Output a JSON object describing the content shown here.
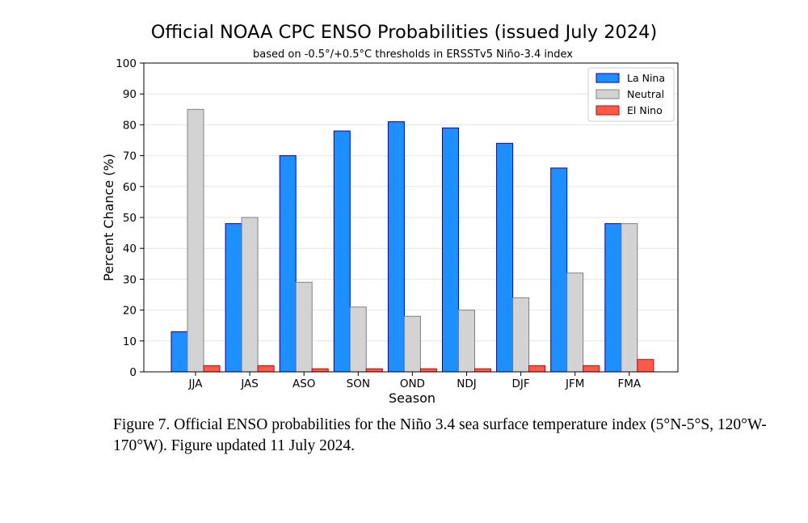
{
  "chart_data": {
    "type": "bar",
    "title": "Official NOAA CPC ENSO Probabilities (issued July 2024)",
    "subtitle": "based on -0.5°/+0.5°C thresholds in ERSSTv5 Niño-3.4 index",
    "xlabel": "Season",
    "ylabel": "Percent Chance (%)",
    "ylim": [
      0,
      100
    ],
    "yticks": [
      0,
      10,
      20,
      30,
      40,
      50,
      60,
      70,
      80,
      90,
      100
    ],
    "grid": true,
    "legend_position": "top-right",
    "categories": [
      "JJA",
      "JAS",
      "ASO",
      "SON",
      "OND",
      "NDJ",
      "DJF",
      "JFM",
      "FMA"
    ],
    "series": [
      {
        "name": "La Nina",
        "color": "#1e8fff",
        "edge": "#0000cc",
        "values": [
          13,
          48,
          70,
          78,
          81,
          79,
          74,
          66,
          48
        ]
      },
      {
        "name": "Neutral",
        "color": "#d3d3d3",
        "edge": "#808080",
        "values": [
          85,
          50,
          29,
          21,
          18,
          20,
          24,
          32,
          48
        ]
      },
      {
        "name": "El Nino",
        "color": "#ff5a47",
        "edge": "#cc0000",
        "values": [
          2,
          2,
          1,
          1,
          1,
          1,
          2,
          2,
          4
        ]
      }
    ]
  },
  "caption": "Figure 7. Official ENSO probabilities for the Niño 3.4 sea surface temperature index (5°N-5°S, 120°W-170°W). Figure updated 11 July 2024."
}
